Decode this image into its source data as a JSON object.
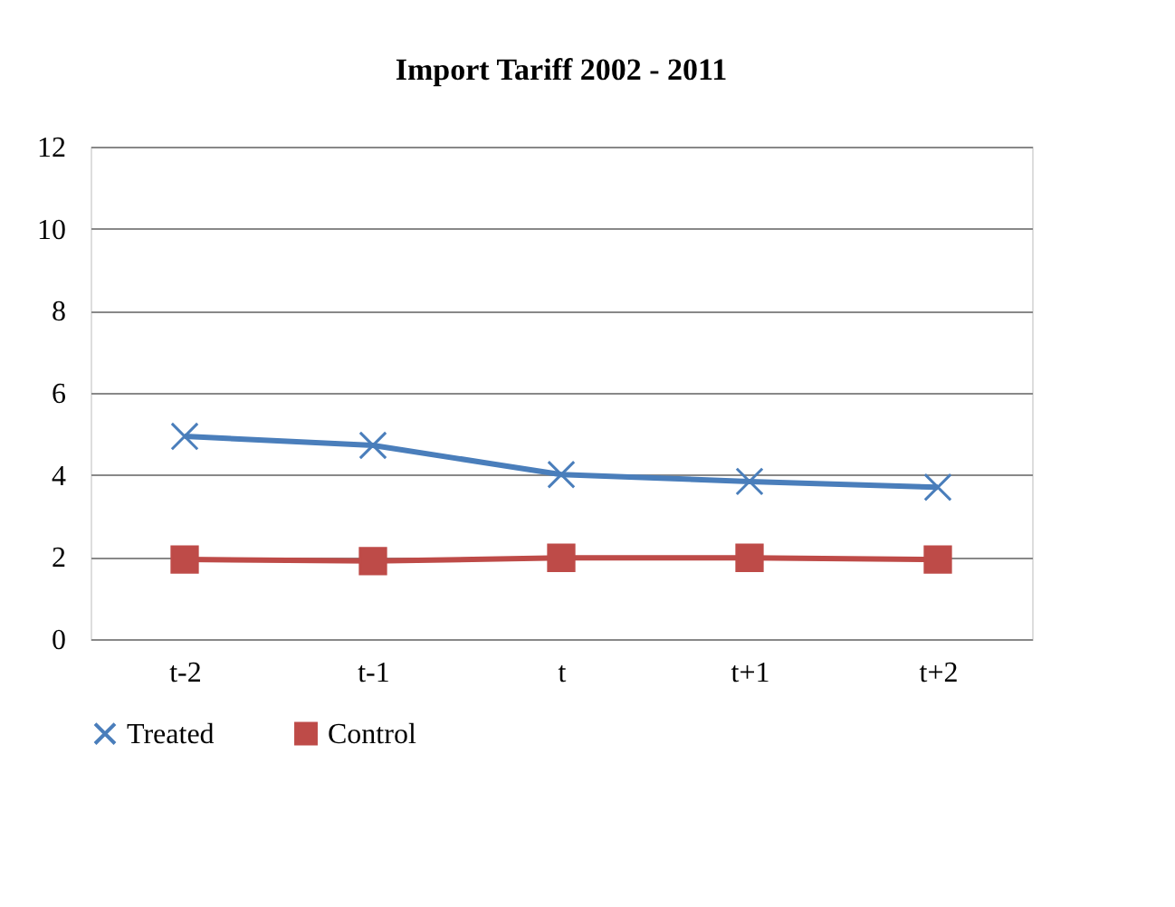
{
  "chart_data": {
    "type": "line",
    "title": "Import Tariff 2002 - 2011",
    "categories": [
      "t-2",
      "t-1",
      "t",
      "t+1",
      "t+2"
    ],
    "series": [
      {
        "name": "Treated",
        "color": "#4a7ebb",
        "marker": "cross",
        "values": [
          4.94,
          4.72,
          4.01,
          3.84,
          3.7
        ]
      },
      {
        "name": "Control",
        "color": "#be4b48",
        "marker": "square",
        "values": [
          1.94,
          1.9,
          1.98,
          1.98,
          1.94
        ]
      }
    ],
    "ylim": [
      0,
      12
    ],
    "yticks": [
      0,
      2,
      4,
      6,
      8,
      10,
      12
    ],
    "grid": "y",
    "legend": "bottom",
    "line_style": "solid"
  }
}
